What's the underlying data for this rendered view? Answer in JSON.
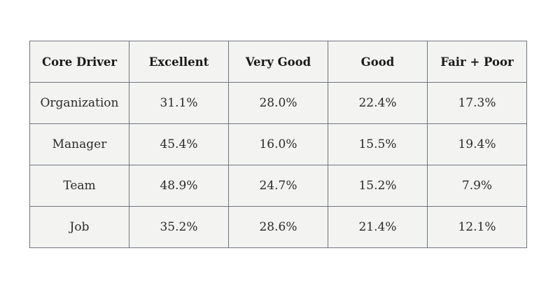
{
  "table": {
    "headers": [
      "Core Driver",
      "Excellent",
      "Very Good",
      "Good",
      "Fair + Poor"
    ],
    "rows": [
      [
        "Organization",
        "31.1%",
        "28.0%",
        "22.4%",
        "17.3%"
      ],
      [
        "Manager",
        "45.4%",
        "16.0%",
        "15.5%",
        "19.4%"
      ],
      [
        "Team",
        "48.9%",
        "24.7%",
        "15.2%",
        "7.9%"
      ],
      [
        "Job",
        "35.2%",
        "28.6%",
        "21.4%",
        "12.1%"
      ]
    ]
  },
  "colors": {
    "cell_background": "#f3f3f1",
    "border": "#6f7480",
    "text": "#1f1f1f"
  }
}
